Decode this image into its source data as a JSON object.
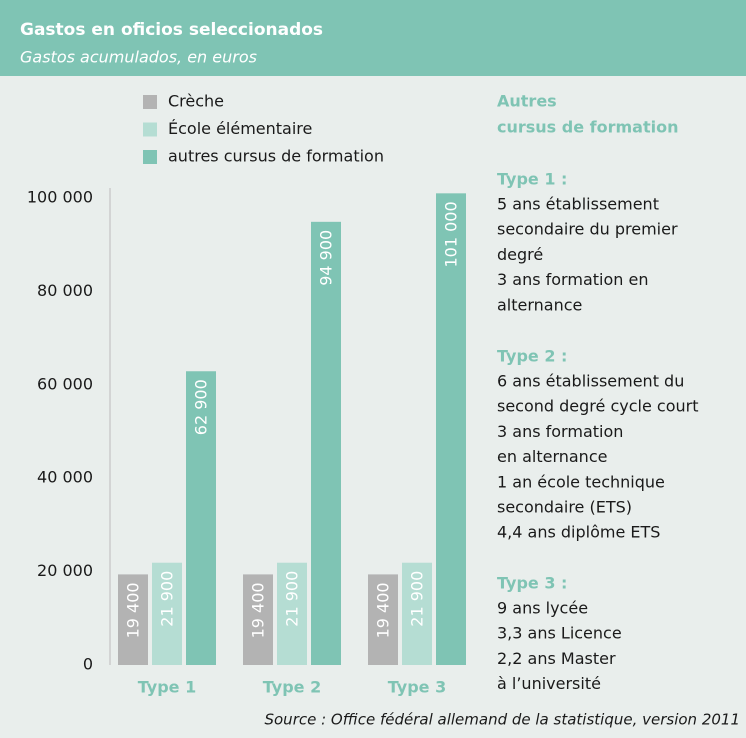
{
  "chart_data": {
    "type": "bar",
    "title": "Gastos en oficios seleccionados",
    "subtitle": "Gastos acumulados, en euros",
    "categories": [
      "Type 1",
      "Type 2",
      "Type 3"
    ],
    "series": [
      {
        "name": "Crèche",
        "color": "#b3b3b3",
        "values": [
          19400,
          19400,
          19400
        ],
        "value_labels": [
          "19 400",
          "19 400",
          "19 400"
        ]
      },
      {
        "name": "École élémentaire",
        "color": "#b5ddd3",
        "values": [
          21900,
          21900,
          21900
        ],
        "value_labels": [
          "21 900",
          "21 900",
          "21 900"
        ]
      },
      {
        "name": "autres cursus de formation",
        "color": "#7fc4b4",
        "values": [
          62900,
          94900,
          101000
        ],
        "value_labels": [
          "62 900",
          "94 900",
          "101 000"
        ]
      }
    ],
    "ylim": [
      0,
      100000
    ],
    "yticks": [
      0,
      {
        "value": 20000,
        "label": "20 000"
      },
      {
        "value": 40000,
        "label": "40 000"
      },
      {
        "value": 60000,
        "label": "60 000"
      },
      {
        "value": 80000,
        "label": "80 000"
      },
      {
        "value": 100000,
        "label": "100 000"
      }
    ],
    "grid": false,
    "legend": "top",
    "notes": {
      "heading": [
        "Autres",
        "cursus de formation"
      ],
      "sections": [
        {
          "title": "Type 1 :",
          "lines": [
            "5 ans établissement",
            "secondaire du premier",
            "degré",
            "3 ans formation en",
            "alternance"
          ]
        },
        {
          "title": "Type 2 :",
          "lines": [
            "6 ans établissement du",
            "second degré cycle court",
            "3 ans formation",
            "en alternance",
            "1 an école technique",
            "secondaire (ETS)",
            "4,4 ans diplôme ETS"
          ]
        },
        {
          "title": "Type 3 :",
          "lines": [
            "9 ans lycée",
            "3,3 ans Licence",
            "2,2 ans Master",
            "à l’université"
          ]
        }
      ]
    },
    "source": "Source : Office fédéral allemand de la statistique, version 2011"
  }
}
